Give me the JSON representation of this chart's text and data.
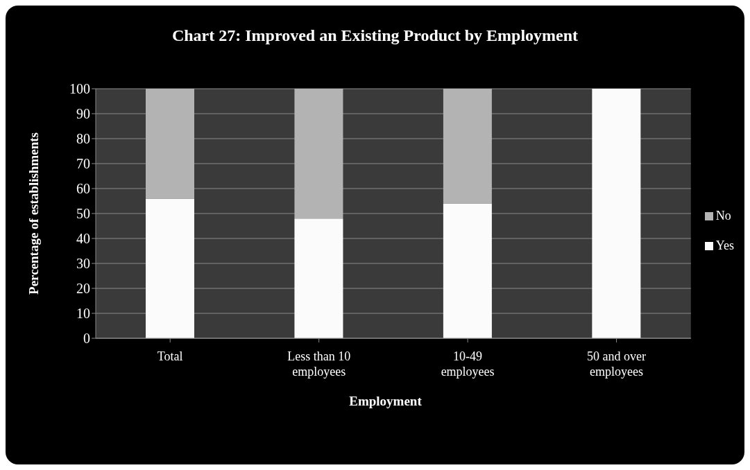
{
  "chart_data": {
    "type": "bar",
    "title": "Chart 27: Improved an Existing Product by Employment",
    "xlabel": "Employment",
    "ylabel": "Percentage of establishments",
    "categories": [
      "Total",
      "Less than 10 employees",
      "10-49 employees",
      "50 and over employees"
    ],
    "stacked": true,
    "series": [
      {
        "name": "Yes",
        "color": "#fbfbfb",
        "values": [
          56,
          48,
          54,
          100
        ]
      },
      {
        "name": "No",
        "color": "#b3b3b3",
        "values": [
          44,
          52,
          46,
          0
        ]
      }
    ],
    "ylim": [
      0,
      100
    ],
    "yticks": [
      0,
      10,
      20,
      30,
      40,
      50,
      60,
      70,
      80,
      90,
      100
    ],
    "grid": "y",
    "legend": "right"
  }
}
